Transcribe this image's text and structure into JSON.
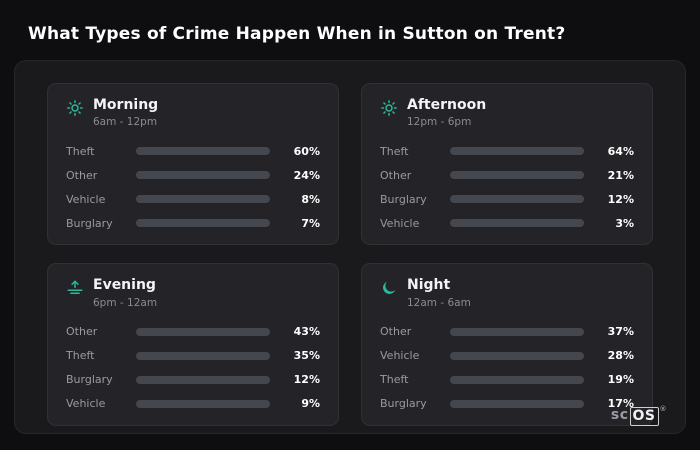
{
  "title": "What Types of Crime Happen When in Sutton on Trent?",
  "colors": {
    "background": "#0e0e10",
    "panel": "#1a1a1d",
    "card": "#232328",
    "track": "#45474e",
    "icon_teal": "#2bb99a",
    "theft": "#a855f7",
    "other": "#64748b",
    "vehicle": "#3b82f6",
    "burglary": "#e8821e"
  },
  "cards": [
    {
      "id": "morning",
      "title": "Morning",
      "subtitle": "6am - 12pm",
      "icon": "sun-icon",
      "rows": [
        {
          "label": "Theft",
          "value": 60,
          "pct": "60%",
          "color": "#a855f7"
        },
        {
          "label": "Other",
          "value": 24,
          "pct": "24%",
          "color": "#64748b"
        },
        {
          "label": "Vehicle",
          "value": 8,
          "pct": "8%",
          "color": "#3b82f6"
        },
        {
          "label": "Burglary",
          "value": 7,
          "pct": "7%",
          "color": "#e8821e"
        }
      ]
    },
    {
      "id": "afternoon",
      "title": "Afternoon",
      "subtitle": "12pm - 6pm",
      "icon": "sun-icon",
      "rows": [
        {
          "label": "Theft",
          "value": 64,
          "pct": "64%",
          "color": "#a855f7"
        },
        {
          "label": "Other",
          "value": 21,
          "pct": "21%",
          "color": "#64748b"
        },
        {
          "label": "Burglary",
          "value": 12,
          "pct": "12%",
          "color": "#e8821e"
        },
        {
          "label": "Vehicle",
          "value": 3,
          "pct": "3%",
          "color": "#3b82f6"
        }
      ]
    },
    {
      "id": "evening",
      "title": "Evening",
      "subtitle": "6pm - 12am",
      "icon": "sunset-icon",
      "rows": [
        {
          "label": "Other",
          "value": 43,
          "pct": "43%",
          "color": "#64748b"
        },
        {
          "label": "Theft",
          "value": 35,
          "pct": "35%",
          "color": "#a855f7"
        },
        {
          "label": "Burglary",
          "value": 12,
          "pct": "12%",
          "color": "#e8821e"
        },
        {
          "label": "Vehicle",
          "value": 9,
          "pct": "9%",
          "color": "#3b82f6"
        }
      ]
    },
    {
      "id": "night",
      "title": "Night",
      "subtitle": "12am - 6am",
      "icon": "moon-icon",
      "rows": [
        {
          "label": "Other",
          "value": 37,
          "pct": "37%",
          "color": "#64748b"
        },
        {
          "label": "Vehicle",
          "value": 28,
          "pct": "28%",
          "color": "#3b82f6"
        },
        {
          "label": "Theft",
          "value": 19,
          "pct": "19%",
          "color": "#a855f7"
        },
        {
          "label": "Burglary",
          "value": 17,
          "pct": "17%",
          "color": "#e8821e"
        }
      ]
    }
  ],
  "logo": {
    "prefix": "sc",
    "suffix": "OS",
    "mark": "®"
  },
  "chart_data": [
    {
      "type": "bar",
      "title": "Morning",
      "subtitle": "6am - 12pm",
      "categories": [
        "Theft",
        "Other",
        "Vehicle",
        "Burglary"
      ],
      "values": [
        60,
        24,
        8,
        7
      ],
      "unit": "%",
      "orientation": "horizontal",
      "xlim": [
        0,
        100
      ]
    },
    {
      "type": "bar",
      "title": "Afternoon",
      "subtitle": "12pm - 6pm",
      "categories": [
        "Theft",
        "Other",
        "Burglary",
        "Vehicle"
      ],
      "values": [
        64,
        21,
        12,
        3
      ],
      "unit": "%",
      "orientation": "horizontal",
      "xlim": [
        0,
        100
      ]
    },
    {
      "type": "bar",
      "title": "Evening",
      "subtitle": "6pm - 12am",
      "categories": [
        "Other",
        "Theft",
        "Burglary",
        "Vehicle"
      ],
      "values": [
        43,
        35,
        12,
        9
      ],
      "unit": "%",
      "orientation": "horizontal",
      "xlim": [
        0,
        100
      ]
    },
    {
      "type": "bar",
      "title": "Night",
      "subtitle": "12am - 6am",
      "categories": [
        "Other",
        "Vehicle",
        "Theft",
        "Burglary"
      ],
      "values": [
        37,
        28,
        19,
        17
      ],
      "unit": "%",
      "orientation": "horizontal",
      "xlim": [
        0,
        100
      ]
    }
  ]
}
